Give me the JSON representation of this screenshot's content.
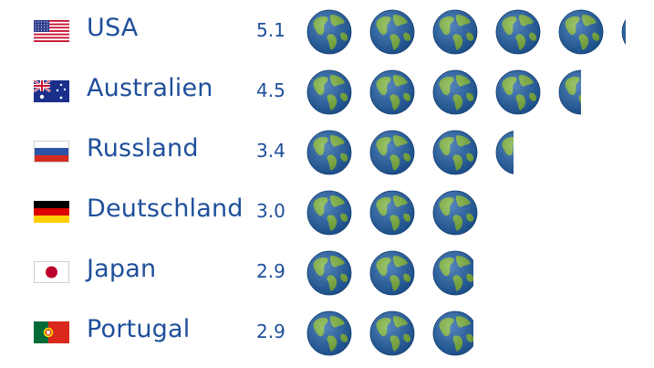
{
  "chart_data": {
    "type": "pictograph",
    "unit_icon": "globe-icon",
    "colors": {
      "text": "#1e4f9a",
      "ocean": "#1f5fa8",
      "land": "#7bb43a"
    },
    "categories": [
      "USA",
      "Australien",
      "Russland",
      "Deutschland",
      "Japan",
      "Portugal"
    ],
    "values": [
      5.1,
      4.5,
      3.4,
      3.0,
      2.9,
      2.9
    ],
    "value_labels": [
      "5.1",
      "4.5",
      "3.4",
      "3.0",
      "2.9",
      "2.9"
    ],
    "flags": [
      "usa-flag-icon",
      "australia-flag-icon",
      "russia-flag-icon",
      "germany-flag-icon",
      "japan-flag-icon",
      "portugal-flag-icon"
    ]
  }
}
